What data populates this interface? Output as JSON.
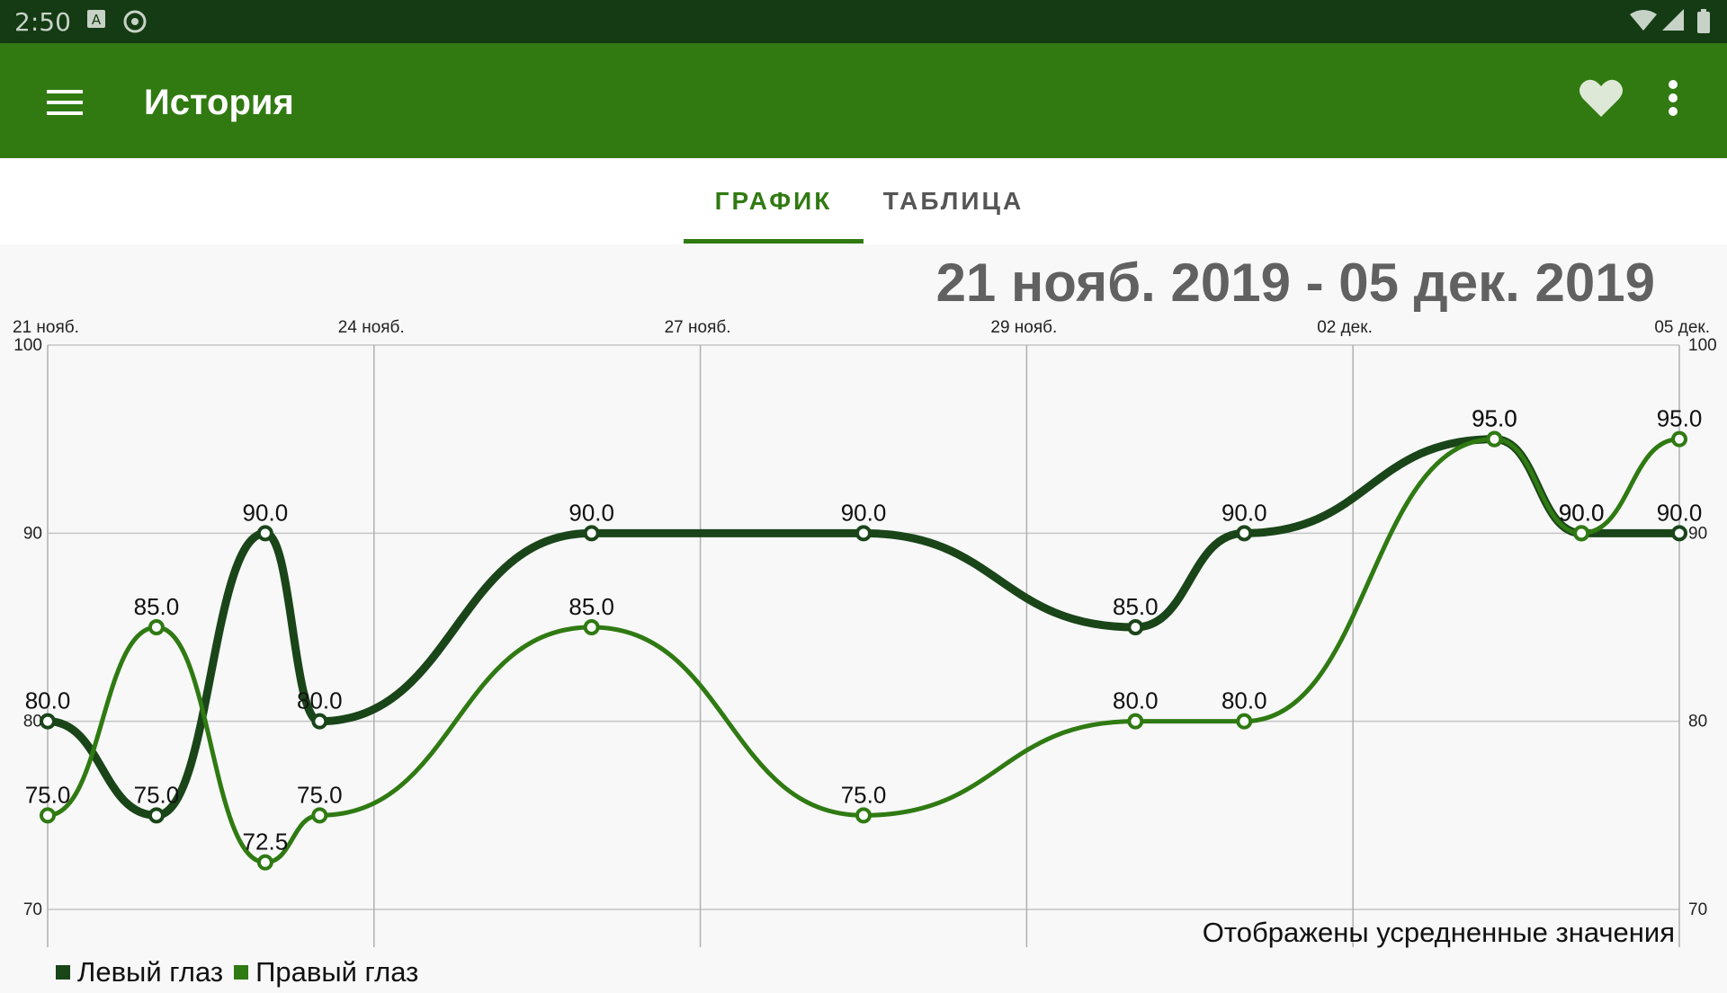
{
  "status_bar": {
    "time": "2:50"
  },
  "app_bar": {
    "title": "История",
    "menu_icon": "menu-icon",
    "favorite_icon": "heart-icon",
    "more_icon": "more-vert-icon"
  },
  "tabs": [
    {
      "label": "ГРАФИК",
      "active": true
    },
    {
      "label": "ТАБЛИЦА",
      "active": false
    }
  ],
  "date_range": "21 нояб. 2019 - 05 дек. 2019",
  "note": "Отображены усредненные значения",
  "colors": {
    "left_eye": "#1a4519",
    "right_eye": "#2f7a12",
    "app_bar": "#317a12",
    "status_bar": "#143b13"
  },
  "chart_data": {
    "type": "line",
    "x_tick_labels": [
      "21 нояб.",
      "24 нояб.",
      "27 нояб.",
      "29 нояб.",
      "02 дек.",
      "05 дек."
    ],
    "y_ticks": [
      70,
      80,
      90,
      100
    ],
    "ylim": [
      70,
      100
    ],
    "x_range": [
      0,
      14
    ],
    "grid": true,
    "legend_position": "bottom-left",
    "series": [
      {
        "name": "Левый глаз",
        "x": [
          0,
          1,
          2,
          2.5,
          5,
          7.5,
          10,
          11,
          13.3,
          14.1,
          15
        ],
        "values": [
          80.0,
          75.0,
          90.0,
          80.0,
          90.0,
          90.0,
          85.0,
          90.0,
          95.0,
          90.0,
          90.0
        ]
      },
      {
        "name": "Правый глаз",
        "x": [
          0,
          1,
          2,
          2.5,
          5,
          7.5,
          10,
          11,
          13.3,
          14.1,
          15
        ],
        "values": [
          75.0,
          85.0,
          72.5,
          75.0,
          85.0,
          75.0,
          80.0,
          80.0,
          95.0,
          90.0,
          95.0
        ]
      }
    ]
  }
}
